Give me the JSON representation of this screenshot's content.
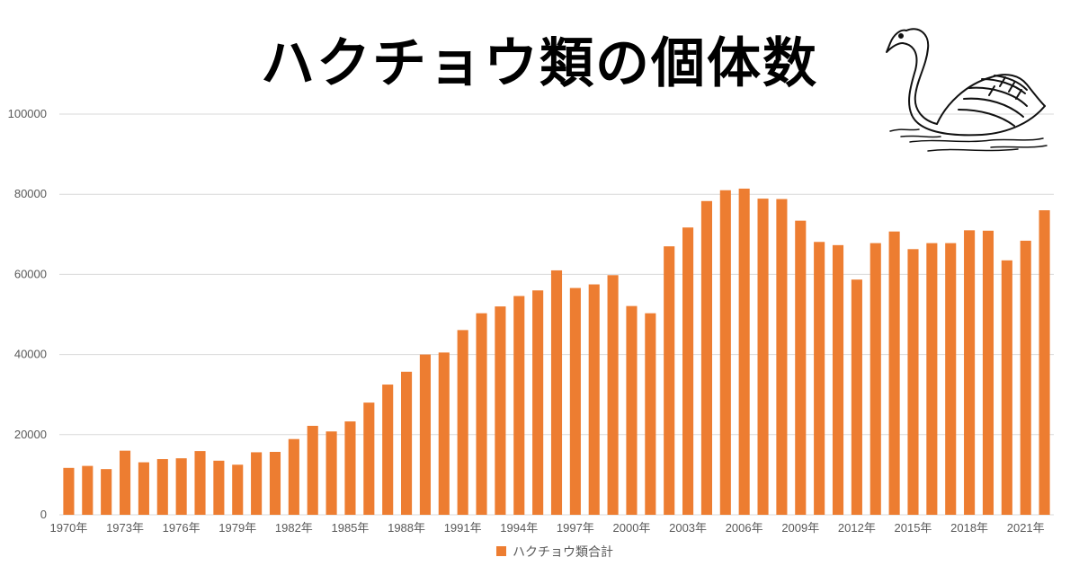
{
  "title": "ハクチョウ類の個体数",
  "colors": {
    "bar": "#ED7D31",
    "grid": "#D9D9D9",
    "axis_text": "#595959"
  },
  "chart_data": {
    "type": "bar",
    "title": "ハクチョウ類の個体数",
    "legend": {
      "label": "ハクチョウ類合計",
      "position": "bottom"
    },
    "ylim": [
      0,
      100000
    ],
    "yticks": [
      0,
      20000,
      40000,
      60000,
      80000,
      100000
    ],
    "grid": true,
    "tick_labels_x": [
      "1970年",
      "1973年",
      "1976年",
      "1979年",
      "1982年",
      "1985年",
      "1988年",
      "1991年",
      "1994年",
      "1997年",
      "2000年",
      "2003年",
      "2006年",
      "2009年",
      "2012年",
      "2015年",
      "2018年",
      "2021年"
    ],
    "categories": [
      "1970",
      "1971",
      "1972",
      "1973",
      "1974",
      "1975",
      "1976",
      "1977",
      "1978",
      "1979",
      "1980",
      "1981",
      "1982",
      "1983",
      "1984",
      "1985",
      "1986",
      "1987",
      "1988",
      "1989",
      "1990",
      "1991",
      "1992",
      "1993",
      "1994",
      "1995",
      "1996",
      "1997",
      "1998",
      "1999",
      "2000",
      "2001",
      "2002",
      "2003",
      "2004",
      "2005",
      "2006",
      "2007",
      "2008",
      "2009",
      "2010",
      "2011",
      "2012",
      "2013",
      "2014",
      "2015",
      "2016",
      "2017",
      "2018",
      "2019",
      "2020",
      "2021",
      "2022"
    ],
    "series": [
      {
        "name": "ハクチョウ類合計",
        "values": [
          11700,
          12200,
          11400,
          16000,
          13100,
          13900,
          14100,
          15900,
          13500,
          12500,
          15600,
          15700,
          18900,
          22200,
          20800,
          23300,
          28000,
          32500,
          35700,
          40000,
          40500,
          46100,
          50300,
          52000,
          54600,
          56000,
          61000,
          56600,
          57500,
          59800,
          52100,
          50300,
          67000,
          71700,
          78300,
          81000,
          81400,
          78900,
          78800,
          73400,
          68100,
          67300,
          58700,
          67800,
          70700,
          66300,
          67800,
          67800,
          71000,
          70900,
          63500,
          68400,
          76000
        ]
      }
    ]
  }
}
